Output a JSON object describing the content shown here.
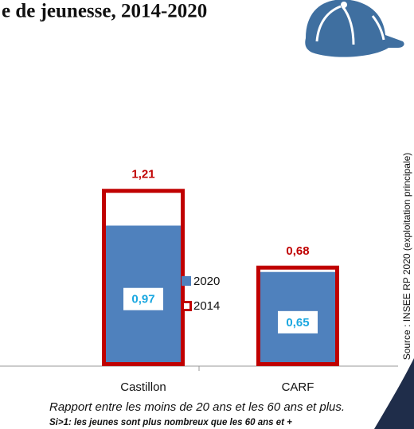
{
  "chart_data": {
    "type": "bar",
    "title": "e de jeunesse, 2014-2020",
    "categories": [
      "Castillon",
      "CARF"
    ],
    "series": [
      {
        "name": "2020",
        "color": "#4f81bd",
        "label_color": "#1aa7e0",
        "values": [
          0.97,
          0.65
        ],
        "value_labels": [
          "0,97",
          "0,65"
        ]
      },
      {
        "name": "2014",
        "color": "#c00000",
        "label_color": "#c00000",
        "values": [
          1.21,
          0.68
        ],
        "value_labels": [
          "1,21",
          "0,68"
        ]
      }
    ],
    "source": "Source : INSEE RP 2020 (exploitation principale)",
    "caption": "Rapport entre les moins de 20 ans et les 60 ans et plus.",
    "note": "Si>1: les jeunes sont plus nombreux que les 60 ans et +"
  }
}
